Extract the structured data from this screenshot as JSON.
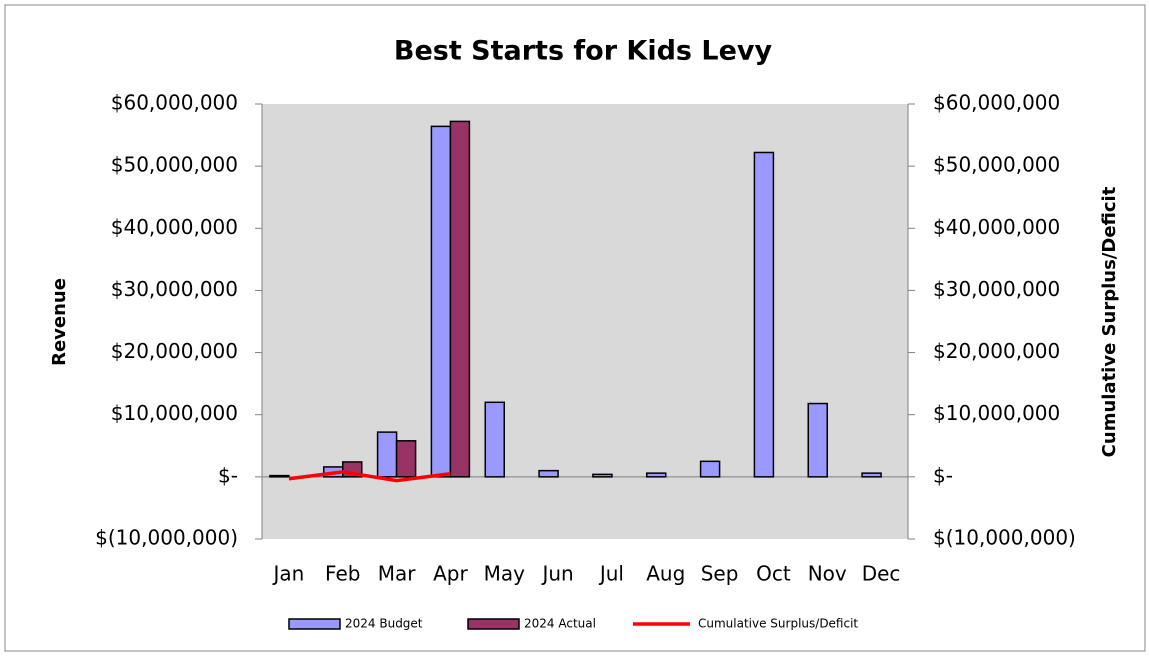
{
  "chart_data": {
    "type": "bar",
    "title": "Best Starts for Kids Levy",
    "y_label": "Revenue",
    "y2_label": "Cumulative Surplus/Deficit",
    "categories": [
      "Jan",
      "Feb",
      "Mar",
      "Apr",
      "May",
      "Jun",
      "Jul",
      "Aug",
      "Sep",
      "Oct",
      "Nov",
      "Dec"
    ],
    "series": [
      {
        "name": "2024 Budget",
        "color": "#9999ff",
        "type": "bar",
        "values": [
          200000,
          1600000,
          7200000,
          56400000,
          12000000,
          1000000,
          400000,
          600000,
          2500000,
          52200000,
          11800000,
          600000
        ]
      },
      {
        "name": "2024 Actual",
        "color": "#993366",
        "type": "bar",
        "values": [
          0,
          2400000,
          5800000,
          57200000,
          null,
          null,
          null,
          null,
          null,
          null,
          null,
          null
        ]
      },
      {
        "name": "Cumulative Surplus/Deficit",
        "color": "#ff0000",
        "type": "line",
        "axis": "y2",
        "values": [
          -300000,
          800000,
          -600000,
          500000,
          null,
          null,
          null,
          null,
          null,
          null,
          null,
          null
        ]
      }
    ],
    "ylim": [
      -10000000,
      60000000
    ],
    "yticks": [
      {
        "value": -10000000,
        "label": "$(10,000,000)"
      },
      {
        "value": 0,
        "label": "$-"
      },
      {
        "value": 10000000,
        "label": "$10,000,000"
      },
      {
        "value": 20000000,
        "label": "$20,000,000"
      },
      {
        "value": 30000000,
        "label": "$30,000,000"
      },
      {
        "value": 40000000,
        "label": "$40,000,000"
      },
      {
        "value": 50000000,
        "label": "$50,000,000"
      },
      {
        "value": 60000000,
        "label": "$60,000,000"
      }
    ],
    "y2lim": [
      -10000000,
      60000000
    ],
    "y2ticks": [
      {
        "value": -10000000,
        "label": "$(10,000,000)"
      },
      {
        "value": 0,
        "label": "$-"
      },
      {
        "value": 10000000,
        "label": "$10,000,000"
      },
      {
        "value": 20000000,
        "label": "$20,000,000"
      },
      {
        "value": 30000000,
        "label": "$30,000,000"
      },
      {
        "value": 40000000,
        "label": "$40,000,000"
      },
      {
        "value": 50000000,
        "label": "$50,000,000"
      },
      {
        "value": 60000000,
        "label": "$60,000,000"
      }
    ],
    "legend": "bottom",
    "plot_background": "#d9d9d9"
  }
}
